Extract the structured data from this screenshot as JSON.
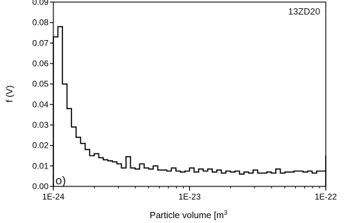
{
  "chart_data": {
    "type": "line",
    "step": true,
    "title": "",
    "sample_label": "13ZD20",
    "panel_label": "o)",
    "xlabel": "Particle volume [m³]",
    "ylabel": "f (V)",
    "x_scale": "log",
    "xlim": [
      1e-24,
      1e-22
    ],
    "ylim": [
      0.0,
      0.09
    ],
    "x_ticks": [
      {
        "value": 1e-24,
        "label": "1E-24"
      },
      {
        "value": 1e-23,
        "label": "1E-23"
      },
      {
        "value": 1e-22,
        "label": "1E-22"
      }
    ],
    "y_ticks": [
      {
        "value": 0.0,
        "label": "0.00"
      },
      {
        "value": 0.01,
        "label": "0.01"
      },
      {
        "value": 0.02,
        "label": "0.02"
      },
      {
        "value": 0.03,
        "label": "0.03"
      },
      {
        "value": 0.04,
        "label": "0.04"
      },
      {
        "value": 0.05,
        "label": "0.05"
      },
      {
        "value": 0.06,
        "label": "0.06"
      },
      {
        "value": 0.07,
        "label": "0.07"
      },
      {
        "value": 0.08,
        "label": "0.08"
      },
      {
        "value": 0.09,
        "label": "0.09"
      }
    ],
    "grid": false,
    "legend": "none",
    "bins_per_decade": 30,
    "series": [
      {
        "values": [
          0.073,
          0.078,
          0.05,
          0.038,
          0.029,
          0.024,
          0.021,
          0.018,
          0.015,
          0.016,
          0.014,
          0.013,
          0.0125,
          0.012,
          0.011,
          0.009,
          0.0145,
          0.009,
          0.0085,
          0.011,
          0.009,
          0.0085,
          0.01,
          0.008,
          0.008,
          0.0075,
          0.009,
          0.0075,
          0.007,
          0.0075,
          0.009,
          0.007,
          0.0085,
          0.0075,
          0.0085,
          0.007,
          0.008,
          0.0065,
          0.0075,
          0.007,
          0.0075,
          0.006,
          0.007,
          0.0065,
          0.008,
          0.0065,
          0.0065,
          0.007,
          0.0065,
          0.0085,
          0.0065,
          0.007,
          0.007,
          0.0075,
          0.0075,
          0.007,
          0.0075,
          0.0065,
          0.0075,
          0.0075,
          0.015
        ]
      }
    ]
  }
}
